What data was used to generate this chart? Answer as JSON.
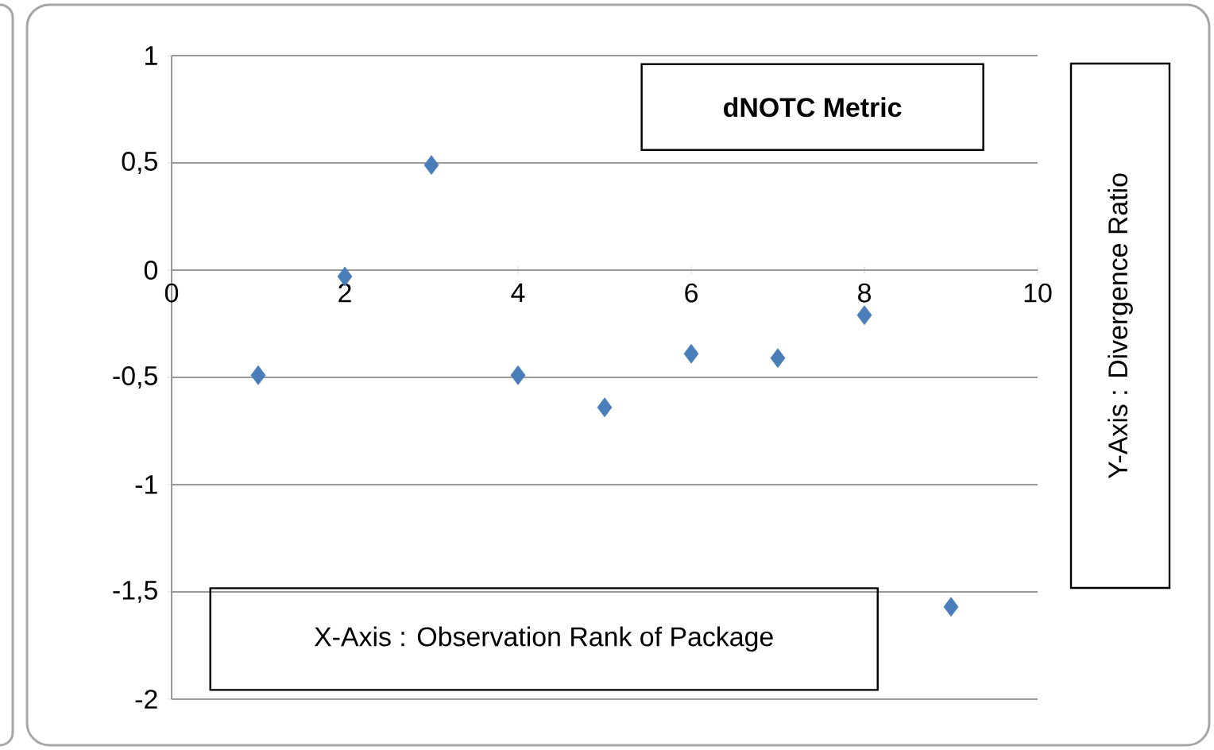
{
  "chart_data": {
    "type": "scatter",
    "title": "dNOTC Metric",
    "xlabel": "X-Axis : Observation Rank of Package",
    "ylabel": "Y-Axis : Divergence Ratio",
    "x": [
      1,
      2,
      3,
      4,
      5,
      6,
      7,
      8,
      9
    ],
    "series": [
      {
        "color": "#4a7ebb",
        "values": [
          -0.49,
          -0.03,
          0.49,
          -0.49,
          -0.64,
          -0.39,
          -0.41,
          -0.21,
          -1.57
        ]
      }
    ],
    "xlim": [
      0,
      10
    ],
    "xticks": [
      0,
      2,
      4,
      6,
      8,
      10
    ],
    "ylim": [
      -2,
      1
    ],
    "yticks": [
      {
        "value": -2,
        "label": "-2"
      },
      {
        "value": -1.5,
        "label": "-1,5"
      },
      {
        "value": -1,
        "label": "-1"
      },
      {
        "value": -0.5,
        "label": "-0,5"
      },
      {
        "value": 0,
        "label": "0"
      },
      {
        "value": 0.5,
        "label": "0,5"
      },
      {
        "value": 1,
        "label": "1"
      }
    ],
    "grid": "y",
    "marker": "diamond"
  }
}
